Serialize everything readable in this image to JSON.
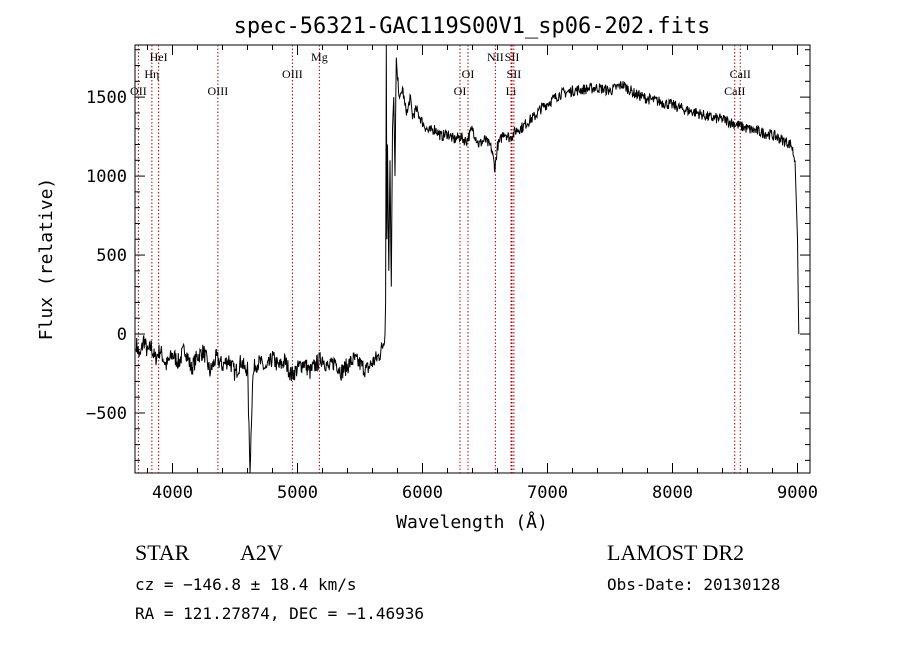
{
  "chart_data": {
    "type": "line",
    "title": "spec-56321-GAC119S00V1_sp06-202.fits",
    "xlabel": "Wavelength (Å)",
    "ylabel": "Flux (relative)",
    "xlim": [
      3700,
      9100
    ],
    "ylim": [
      -880,
      1830
    ],
    "x_ticks": [
      4000,
      5000,
      6000,
      7000,
      8000,
      9000
    ],
    "y_ticks": [
      -500,
      0,
      500,
      1000,
      1500
    ],
    "grid": false,
    "series": [
      {
        "x": [
          3710,
          3740,
          3770,
          3800,
          3830,
          3860,
          3900,
          3950,
          4000,
          4050,
          4100,
          4150,
          4200,
          4250,
          4300,
          4350,
          4400,
          4450,
          4500,
          4550,
          4580,
          4600,
          4620,
          4640,
          4660,
          4700,
          4750,
          4800,
          4850,
          4900,
          4950,
          5000,
          5050,
          5100,
          5150,
          5200,
          5250,
          5300,
          5350,
          5400,
          5450,
          5500,
          5550,
          5600,
          5650,
          5680,
          5700,
          5705,
          5710,
          5715,
          5720,
          5730,
          5740,
          5750,
          5760,
          5770,
          5780,
          5790,
          5800,
          5820,
          5840,
          5860,
          5880,
          5900,
          5920,
          5950,
          6000,
          6050,
          6100,
          6150,
          6200,
          6250,
          6300,
          6350,
          6400,
          6450,
          6500,
          6550,
          6580,
          6600,
          6620,
          6650,
          6700,
          6750,
          6800,
          6850,
          6900,
          6950,
          7000,
          7100,
          7200,
          7300,
          7400,
          7500,
          7600,
          7700,
          7800,
          7900,
          8000,
          8100,
          8200,
          8300,
          8400,
          8500,
          8600,
          8700,
          8800,
          8850,
          8900,
          8950,
          8980,
          9000,
          9010
        ],
        "y": [
          -60,
          -150,
          -30,
          -120,
          -80,
          -160,
          -100,
          -200,
          -130,
          -180,
          -90,
          -220,
          -140,
          -110,
          -240,
          -150,
          -200,
          -160,
          -250,
          -170,
          -230,
          -210,
          -880,
          -300,
          -190,
          -180,
          -230,
          -150,
          -210,
          -170,
          -260,
          -220,
          -180,
          -240,
          -190,
          -150,
          -220,
          -170,
          -240,
          -200,
          -160,
          -190,
          -230,
          -180,
          -140,
          -80,
          0,
          200,
          1830,
          600,
          1200,
          400,
          1100,
          300,
          1300,
          1500,
          1000,
          1750,
          1620,
          1480,
          1560,
          1440,
          1400,
          1500,
          1380,
          1420,
          1340,
          1280,
          1300,
          1250,
          1270,
          1230,
          1250,
          1220,
          1300,
          1200,
          1230,
          1180,
          1050,
          1190,
          1220,
          1280,
          1240,
          1290,
          1310,
          1350,
          1380,
          1430,
          1460,
          1520,
          1540,
          1550,
          1560,
          1540,
          1580,
          1520,
          1490,
          1470,
          1450,
          1420,
          1400,
          1370,
          1360,
          1330,
          1300,
          1280,
          1260,
          1240,
          1220,
          1200,
          1100,
          600,
          0
        ]
      }
    ],
    "lines": [
      {
        "name": "OII",
        "x": 3727,
        "row": 3
      },
      {
        "name": "Hη",
        "x": 3835,
        "row": 2
      },
      {
        "name": "HeI",
        "x": 3889,
        "row": 1
      },
      {
        "name": "OIII",
        "x": 4363,
        "row": 3
      },
      {
        "name": "OIII",
        "x": 4959,
        "row": 2
      },
      {
        "name": "Mg",
        "x": 5175,
        "row": 1
      },
      {
        "name": "OI",
        "x": 6300,
        "row": 3
      },
      {
        "name": "OI",
        "x": 6364,
        "row": 2
      },
      {
        "name": "NII",
        "x": 6583,
        "row": 1
      },
      {
        "name": "SII",
        "x": 6716,
        "row": 1
      },
      {
        "name": "SII",
        "x": 6731,
        "row": 2
      },
      {
        "name": "Li",
        "x": 6708,
        "row": 3
      },
      {
        "name": "CaII",
        "x": 8498,
        "row": 3
      },
      {
        "name": "CaII",
        "x": 8542,
        "row": 2
      }
    ]
  },
  "info": {
    "class": "STAR",
    "subclass": "A2V",
    "survey": "LAMOST DR2",
    "cz": "cz = −146.8 ± 18.4 km/s",
    "obs_date": "Obs-Date: 20130128",
    "radec": "RA = 121.27874, DEC =  −1.46936"
  }
}
